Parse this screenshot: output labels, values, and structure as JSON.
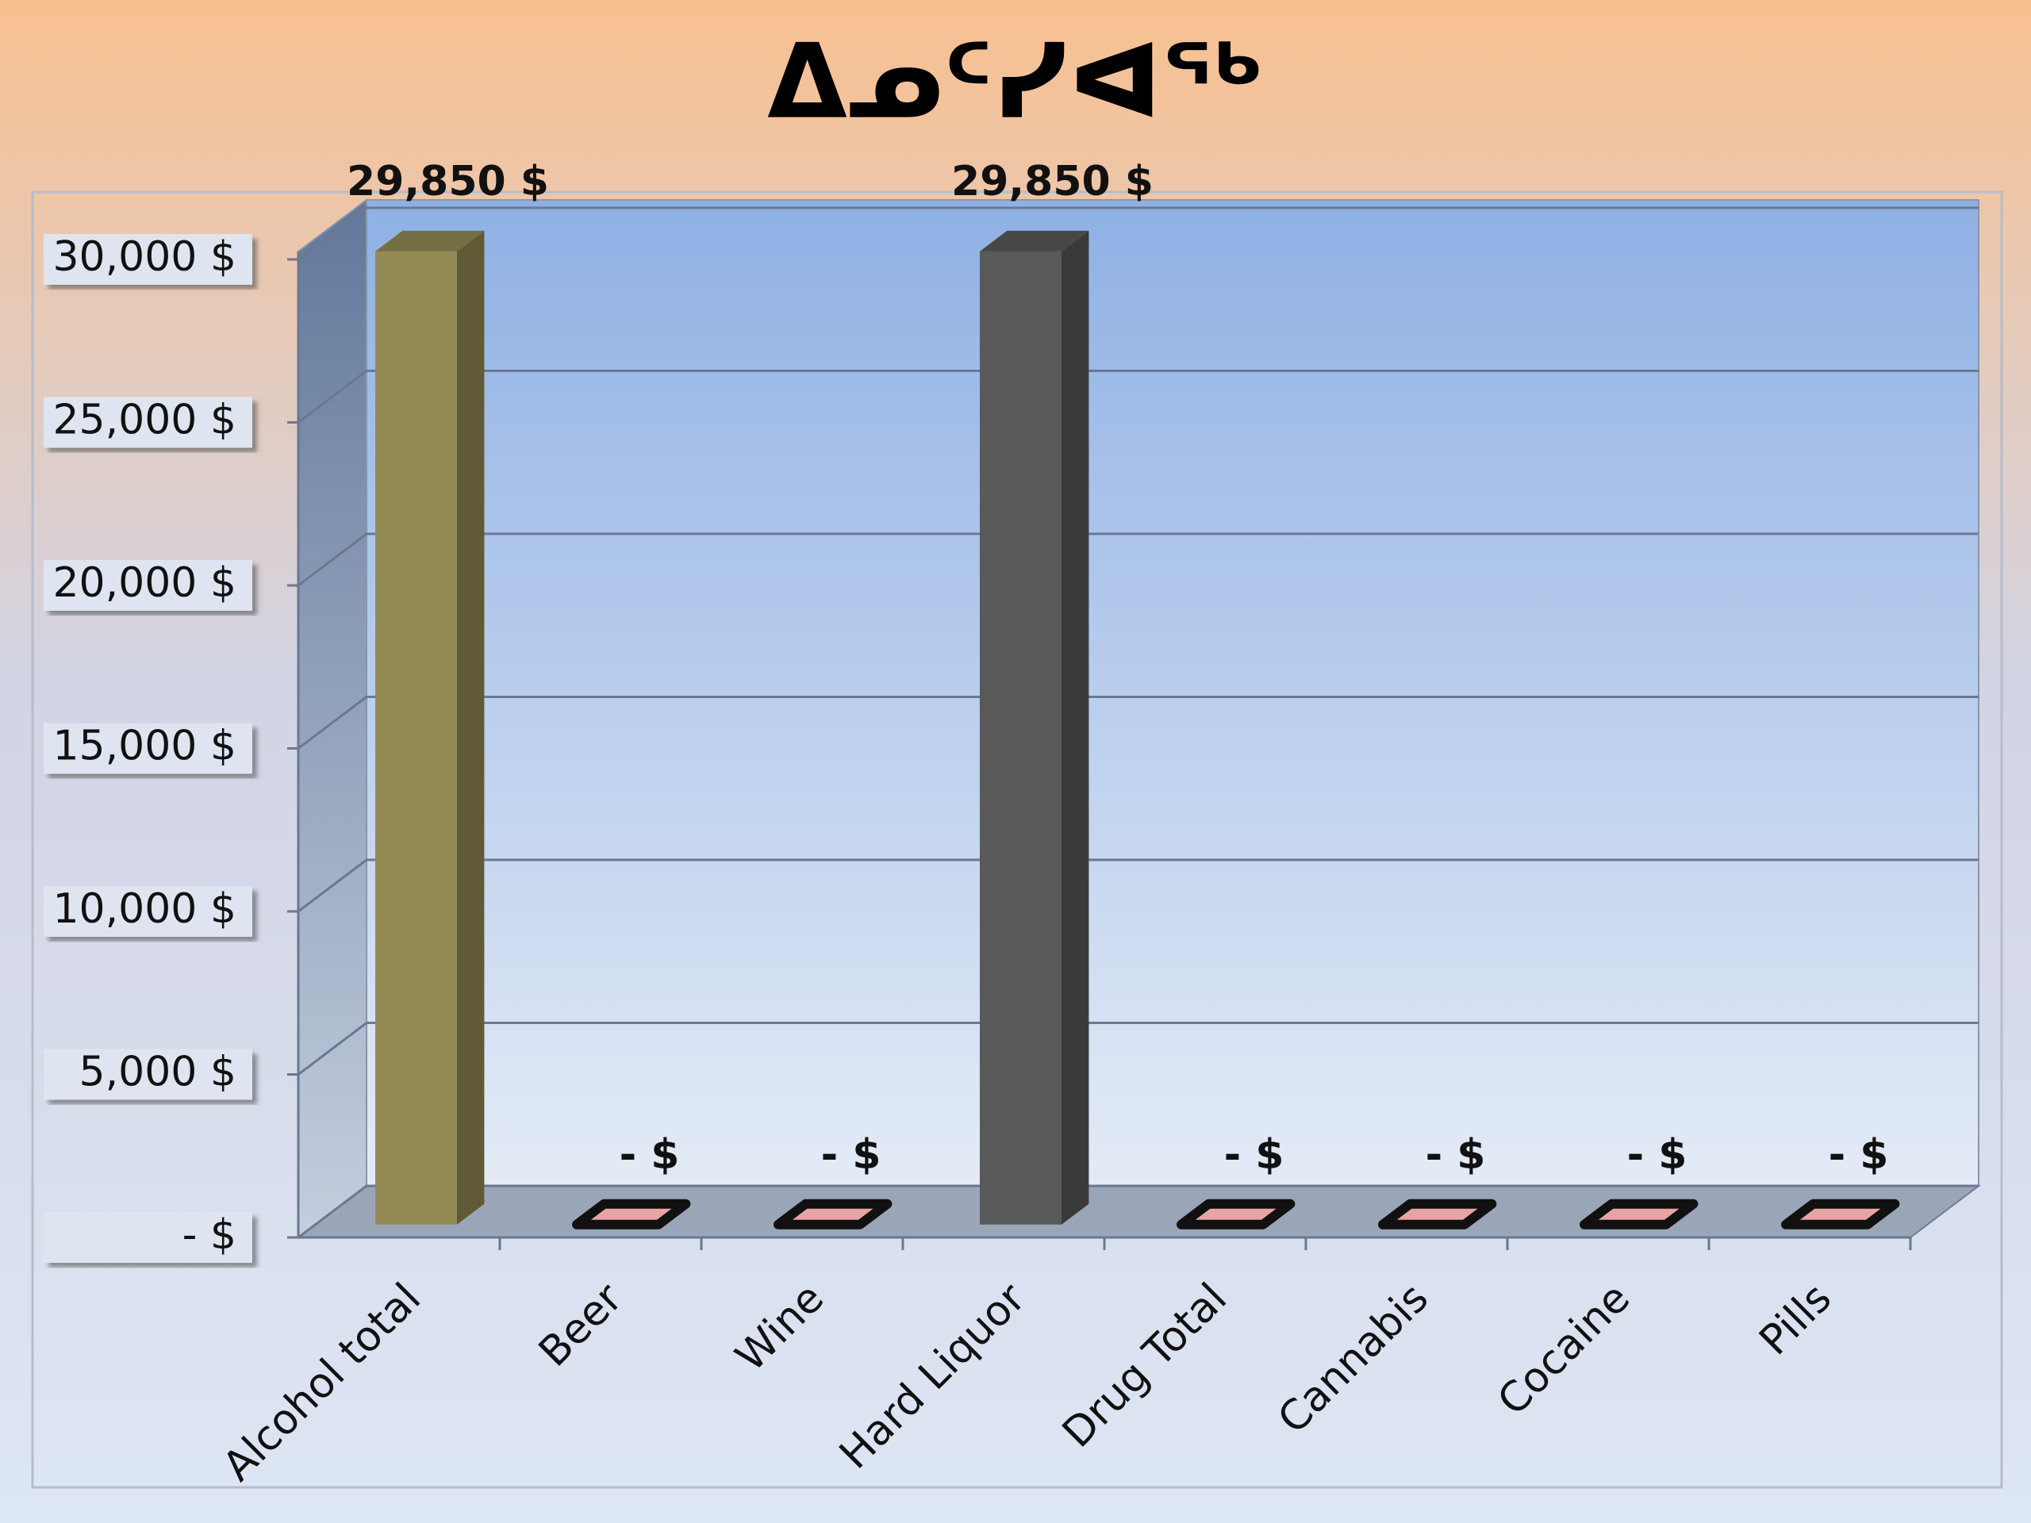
{
  "chart_data": {
    "type": "bar3d",
    "title": "ᐃᓄᑦᓯᐊᖅ",
    "categories": [
      "Alcohol total",
      "Beer",
      "Wine",
      "Hard Liquor",
      "Drug Total",
      "Cannabis",
      "Cocaine",
      "Pills"
    ],
    "values": [
      29850,
      0,
      0,
      29850,
      0,
      0,
      0,
      0
    ],
    "value_labels": [
      "29,850  $",
      "-    $",
      "-    $",
      "29,850  $",
      "-    $",
      "-    $",
      "-    $",
      "-    $"
    ],
    "colors": [
      "#948a54",
      "#e8a4a4",
      "#e8a4a4",
      "#595959",
      "#e8a4a4",
      "#e8a4a4",
      "#e8a4a4",
      "#e8a4a4"
    ],
    "ylim": [
      0,
      30000
    ],
    "yticks": [
      {
        "value": 0,
        "label": "-    $"
      },
      {
        "value": 5000,
        "label": "5,000  $"
      },
      {
        "value": 10000,
        "label": "10,000  $"
      },
      {
        "value": 15000,
        "label": "15,000  $"
      },
      {
        "value": 20000,
        "label": "20,000  $"
      },
      {
        "value": 25000,
        "label": "25,000  $"
      },
      {
        "value": 30000,
        "label": "30,000  $"
      }
    ],
    "grid": true
  }
}
